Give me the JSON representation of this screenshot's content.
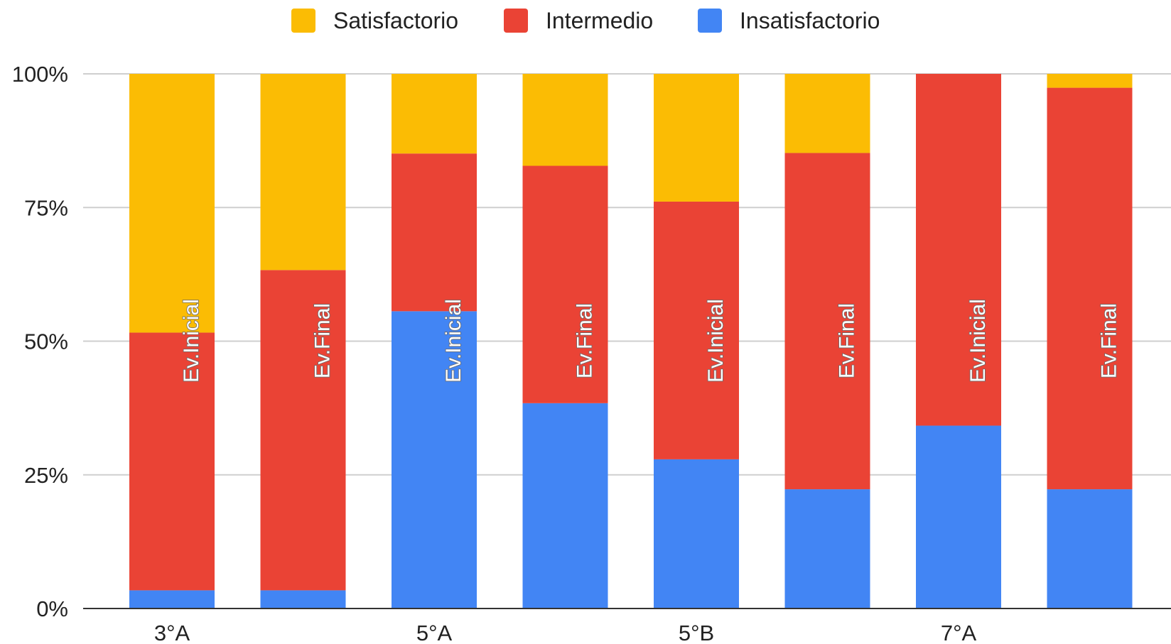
{
  "chart_data": {
    "type": "bar",
    "stacked": true,
    "normalized": true,
    "title": "",
    "xlabel": "",
    "ylabel": "",
    "ylim": [
      0,
      100
    ],
    "yticks": [
      "0%",
      "25%",
      "50%",
      "75%",
      "100%"
    ],
    "xtick_labels": [
      "3°A",
      "",
      "5°A",
      "",
      "5°B",
      "",
      "7°A",
      ""
    ],
    "bar_labels": [
      "Ev.Inicial",
      "Ev.Final",
      "Ev.Inicial",
      "Ev.Final",
      "Ev.Inicial",
      "Ev.Final",
      "Ev.Inicial",
      "Ev.Final"
    ],
    "grid": true,
    "legend_position": "top",
    "series": [
      {
        "name": "Insatisfactorio",
        "color": "#4285F4",
        "values": [
          3.4,
          3.4,
          55.6,
          38.4,
          27.9,
          22.3,
          34.2,
          22.3
        ]
      },
      {
        "name": "Intermedio",
        "color": "#EA4335",
        "values": [
          48.2,
          59.9,
          29.5,
          44.4,
          48.2,
          62.9,
          65.8,
          75.1
        ]
      },
      {
        "name": "Satisfactorio",
        "color": "#FBBC04",
        "values": [
          48.4,
          36.7,
          14.9,
          17.2,
          23.9,
          14.8,
          0,
          2.6
        ]
      }
    ],
    "legend_order": [
      "Satisfactorio",
      "Intermedio",
      "Insatisfactorio"
    ]
  }
}
